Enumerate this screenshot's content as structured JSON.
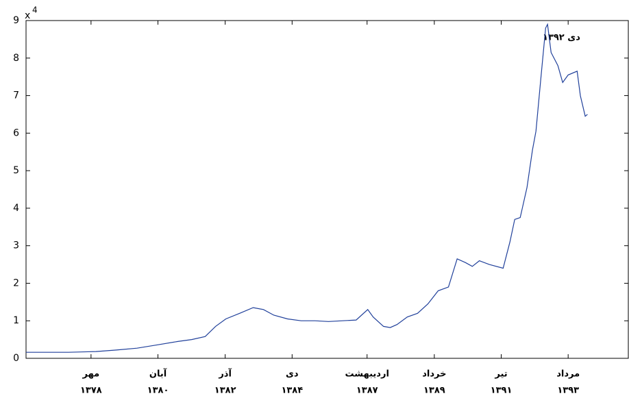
{
  "chart_data": {
    "type": "line",
    "annotation": "دی ۱۳۹۲",
    "y_multiplier": {
      "base": "x",
      "exponent": "4"
    },
    "x": [
      1376.48,
      1377.8,
      1378.65,
      1379.29,
      1379.93,
      1380.57,
      1381.2,
      1381.63,
      1382.05,
      1382.37,
      1382.69,
      1383.12,
      1383.54,
      1383.86,
      1384.18,
      1384.61,
      1385.03,
      1385.46,
      1385.88,
      1386.31,
      1386.74,
      1387.1,
      1387.27,
      1387.59,
      1387.8,
      1388.01,
      1388.33,
      1388.65,
      1388.97,
      1389.29,
      1389.61,
      1389.88,
      1390.14,
      1390.35,
      1390.57,
      1390.88,
      1391.31,
      1391.52,
      1391.67,
      1391.84,
      1392.05,
      1392.22,
      1392.33,
      1392.48,
      1392.63,
      1392.69,
      1392.8,
      1393.01,
      1393.16,
      1393.33,
      1393.61,
      1393.71,
      1393.86,
      1393.93
    ],
    "series": [
      {
        "color": "#1f3f9a",
        "values": [
          0.16,
          0.16,
          0.18,
          0.22,
          0.27,
          0.36,
          0.45,
          0.5,
          0.58,
          0.85,
          1.05,
          1.2,
          1.35,
          1.3,
          1.15,
          1.05,
          1.0,
          1.0,
          0.98,
          1.0,
          1.02,
          1.3,
          1.1,
          0.85,
          0.82,
          0.9,
          1.1,
          1.2,
          1.45,
          1.8,
          1.9,
          2.65,
          2.55,
          2.45,
          2.6,
          2.5,
          2.4,
          3.1,
          3.7,
          3.75,
          4.55,
          5.55,
          6.05,
          7.45,
          8.8,
          8.9,
          8.15,
          7.8,
          7.35,
          7.55,
          7.65,
          7.0,
          6.45,
          6.5
        ]
      }
    ],
    "xlim": [
      1376.48,
      1395.2
    ],
    "xticks": [
      {
        "value": 1378.5,
        "label": "مهر"
      },
      {
        "value": 1380.58,
        "label": "آبان"
      },
      {
        "value": 1382.67,
        "label": "آذر"
      },
      {
        "value": 1384.75,
        "label": "دی"
      },
      {
        "value": 1387.08,
        "label": "اردیبهشت"
      },
      {
        "value": 1389.17,
        "label": "خرداد"
      },
      {
        "value": 1391.25,
        "label": "تیر"
      },
      {
        "value": 1393.33,
        "label": "مرداد"
      }
    ],
    "xtick_years": [
      "۱۳۷۸",
      "۱۳۸۰",
      "۱۳۸۲",
      "۱۳۸۴",
      "۱۳۸۷",
      "۱۳۸۹",
      "۱۳۹۱",
      "۱۳۹۳"
    ],
    "ylim": [
      0,
      9
    ],
    "yticks": [
      0,
      1,
      2,
      3,
      4,
      5,
      6,
      7,
      8,
      9
    ]
  }
}
